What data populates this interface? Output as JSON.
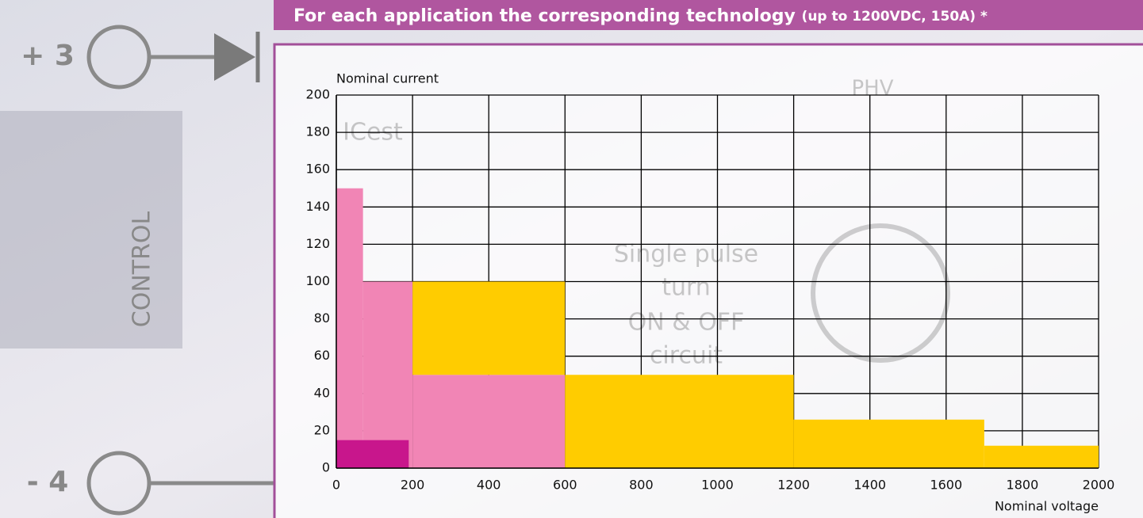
{
  "background": {
    "labels": [
      "+ 3",
      "- 4",
      "CONTROL",
      "PHV",
      "Single pulse",
      "turn",
      "ON & OFF",
      "circuit",
      "ICest"
    ]
  },
  "chart_data": {
    "type": "histogram",
    "title": "For each application the corresponding technology",
    "subtitle": "(up to 1200VDC, 150A) *",
    "y_label": "Nominal current",
    "x_label": "Nominal voltage",
    "xlim": [
      0,
      2000
    ],
    "xticks": [
      0,
      200,
      400,
      600,
      800,
      1000,
      1200,
      1400,
      1600,
      1800,
      2000
    ],
    "ylim": [
      0,
      200
    ],
    "yticks": [
      0,
      20,
      40,
      60,
      80,
      100,
      120,
      140,
      160,
      180,
      200
    ],
    "grid": true,
    "series": [
      {
        "color": "#f185b5",
        "bins": [
          0,
          70,
          200,
          600
        ],
        "values": [
          [
            0,
            150
          ],
          [
            0,
            100
          ],
          [
            0,
            50
          ]
        ]
      },
      {
        "color": "#ffcc00",
        "bins": [
          200,
          600
        ],
        "values": [
          [
            50,
            100
          ]
        ]
      },
      {
        "color": "#ffcc00",
        "bins": [
          600,
          1200,
          1700,
          2000
        ],
        "values": [
          [
            0,
            50
          ],
          [
            0,
            26
          ],
          [
            0,
            12
          ]
        ]
      },
      {
        "color": "#c8168c",
        "bins": [
          0,
          190
        ],
        "values": [
          [
            0,
            15
          ]
        ]
      }
    ]
  }
}
